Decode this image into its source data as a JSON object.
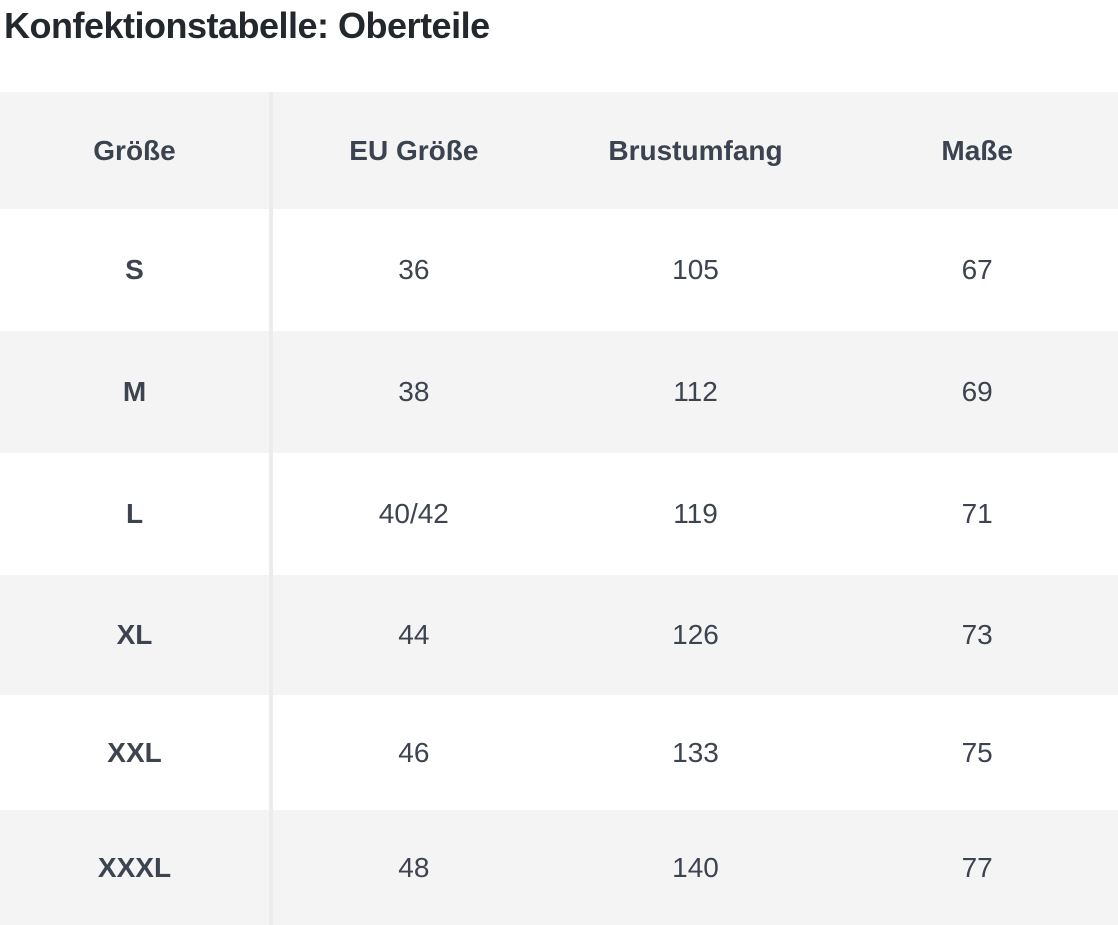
{
  "page": {
    "title": "Konfektionstabelle: Oberteile"
  },
  "chart_data": {
    "type": "table",
    "title": "Konfektionstabelle: Oberteile",
    "columns": [
      "Größe",
      "EU Größe",
      "Brustumfang",
      "Maße"
    ],
    "rows": [
      [
        "S",
        "36",
        "105",
        "67"
      ],
      [
        "M",
        "38",
        "112",
        "69"
      ],
      [
        "L",
        "40/42",
        "119",
        "71"
      ],
      [
        "XL",
        "44",
        "126",
        "73"
      ],
      [
        "XXL",
        "46",
        "133",
        "75"
      ],
      [
        "XXXL",
        "48",
        "140",
        "77"
      ]
    ],
    "layout": {
      "first_column_divider": true,
      "row_striping": "header gray, then alternating white/gray",
      "horizontal_gridlines": false
    }
  },
  "colors": {
    "stripe_bg": "#f4f4f5",
    "white_bg": "#ffffff",
    "divider": "#ececec",
    "table_text": "#3d4450",
    "title_text": "#23272e"
  }
}
